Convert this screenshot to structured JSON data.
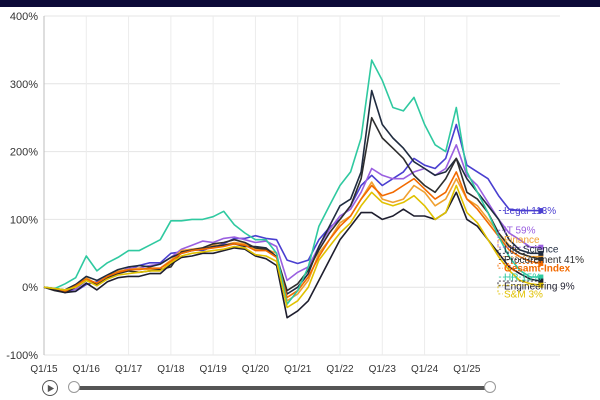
{
  "chart_data": {
    "type": "line",
    "ylim": [
      -100,
      400
    ],
    "yticks": [
      "-100%",
      "0%",
      "100%",
      "200%",
      "300%",
      "400%"
    ],
    "ytick_values": [
      -100,
      0,
      100,
      200,
      300,
      400
    ],
    "xticks": [
      "Q1/15",
      "Q1/16",
      "Q1/17",
      "Q1/18",
      "Q1/19",
      "Q1/20",
      "Q1/21",
      "Q1/22",
      "Q1/23",
      "Q1/24",
      "Q1/25"
    ],
    "xlim": [
      0,
      42
    ],
    "grid": true,
    "series": [
      {
        "name": "Legal",
        "label": "Legal 113%",
        "color": "#4a3fd0",
        "label_y": 113,
        "values": [
          0,
          -4,
          -6,
          -6,
          4,
          8,
          14,
          20,
          26,
          32,
          36,
          36,
          50,
          52,
          56,
          54,
          60,
          64,
          72,
          72,
          76,
          72,
          70,
          40,
          35,
          40,
          70,
          88,
          100,
          120,
          150,
          165,
          150,
          160,
          170,
          190,
          180,
          175,
          190,
          240,
          180,
          170,
          160,
          135,
          115,
          113,
          113,
          113
        ]
      },
      {
        "name": "IT",
        "label": "IT 59%",
        "color": "#9a5fe0",
        "label_y": 84,
        "values": [
          0,
          -3,
          -5,
          -3,
          10,
          6,
          15,
          22,
          28,
          28,
          32,
          34,
          44,
          56,
          62,
          68,
          66,
          72,
          74,
          70,
          66,
          68,
          60,
          10,
          22,
          30,
          60,
          85,
          105,
          115,
          140,
          175,
          165,
          160,
          160,
          170,
          175,
          165,
          175,
          210,
          165,
          150,
          125,
          100,
          80,
          70,
          59,
          59
        ]
      },
      {
        "name": "Finance",
        "label": "Finance",
        "color": "#f0a030",
        "label_y": 70,
        "values": [
          0,
          -2,
          -4,
          4,
          14,
          4,
          16,
          24,
          26,
          28,
          26,
          28,
          40,
          54,
          56,
          58,
          62,
          62,
          66,
          64,
          56,
          56,
          50,
          -20,
          -10,
          10,
          50,
          70,
          95,
          105,
          130,
          155,
          130,
          125,
          130,
          150,
          140,
          120,
          130,
          160,
          130,
          120,
          100,
          80,
          62,
          50,
          45,
          45
        ]
      },
      {
        "name": "Life Science",
        "label": "Life Science",
        "color": "#202c40",
        "label_y": 56,
        "values": [
          0,
          -2,
          -4,
          4,
          16,
          10,
          18,
          26,
          30,
          32,
          30,
          34,
          44,
          50,
          54,
          56,
          60,
          62,
          64,
          60,
          60,
          58,
          45,
          -10,
          0,
          20,
          60,
          90,
          120,
          130,
          170,
          290,
          240,
          220,
          205,
          185,
          175,
          165,
          170,
          190,
          160,
          140,
          120,
          100,
          70,
          55,
          50,
          50
        ]
      },
      {
        "name": "Procurement",
        "label": "Procurement 41%",
        "color": "#2e2e2e",
        "label_y": 41,
        "values": [
          0,
          -5,
          -8,
          0,
          10,
          4,
          14,
          20,
          24,
          22,
          24,
          26,
          30,
          52,
          55,
          58,
          64,
          66,
          70,
          66,
          58,
          56,
          45,
          -5,
          5,
          25,
          55,
          80,
          100,
          120,
          160,
          250,
          220,
          205,
          190,
          165,
          150,
          140,
          160,
          190,
          140,
          130,
          110,
          80,
          60,
          50,
          45,
          41
        ]
      },
      {
        "name": "Gesamt-Index",
        "label": "Gesamt-Index",
        "color": "#f26a00",
        "label_y": 28,
        "values": [
          0,
          -3,
          -6,
          2,
          12,
          6,
          16,
          22,
          26,
          26,
          28,
          28,
          38,
          50,
          54,
          56,
          58,
          60,
          64,
          62,
          54,
          54,
          44,
          -15,
          -5,
          15,
          45,
          70,
          90,
          105,
          130,
          150,
          135,
          140,
          150,
          160,
          145,
          130,
          140,
          170,
          130,
          115,
          95,
          75,
          55,
          45,
          38,
          35
        ]
      },
      {
        "name": "HR",
        "label": "HR 15%",
        "color": "#2fc9a0",
        "label_y": 15,
        "values": [
          0,
          -2,
          5,
          14,
          46,
          24,
          36,
          44,
          54,
          54,
          62,
          70,
          98,
          98,
          100,
          100,
          104,
          112,
          92,
          80,
          70,
          70,
          50,
          -25,
          -5,
          30,
          90,
          120,
          150,
          170,
          220,
          335,
          305,
          265,
          260,
          280,
          240,
          210,
          200,
          265,
          170,
          140,
          110,
          75,
          45,
          25,
          15,
          15
        ]
      },
      {
        "name": "Engineering",
        "label": "Engineering 9%",
        "color": "#1e1e2e",
        "label_y": 2,
        "values": [
          0,
          -4,
          -8,
          -6,
          6,
          -4,
          8,
          14,
          16,
          16,
          20,
          20,
          34,
          44,
          46,
          50,
          50,
          54,
          58,
          56,
          46,
          42,
          32,
          -45,
          -35,
          -20,
          10,
          40,
          70,
          90,
          110,
          110,
          100,
          105,
          115,
          105,
          105,
          100,
          110,
          140,
          100,
          90,
          70,
          50,
          30,
          20,
          12,
          9
        ]
      },
      {
        "name": "S&M",
        "label": "S&M 3%",
        "color": "#e0c100",
        "label_y": -10,
        "values": [
          0,
          -2,
          -4,
          0,
          10,
          2,
          12,
          18,
          20,
          22,
          24,
          24,
          36,
          46,
          50,
          52,
          54,
          56,
          60,
          58,
          48,
          46,
          38,
          -30,
          -20,
          0,
          40,
          60,
          80,
          95,
          120,
          140,
          125,
          120,
          125,
          135,
          120,
          100,
          110,
          150,
          110,
          95,
          70,
          45,
          25,
          10,
          5,
          3
        ]
      }
    ]
  },
  "scrubber": {
    "play_label": "play",
    "play_icon": "play-icon"
  }
}
